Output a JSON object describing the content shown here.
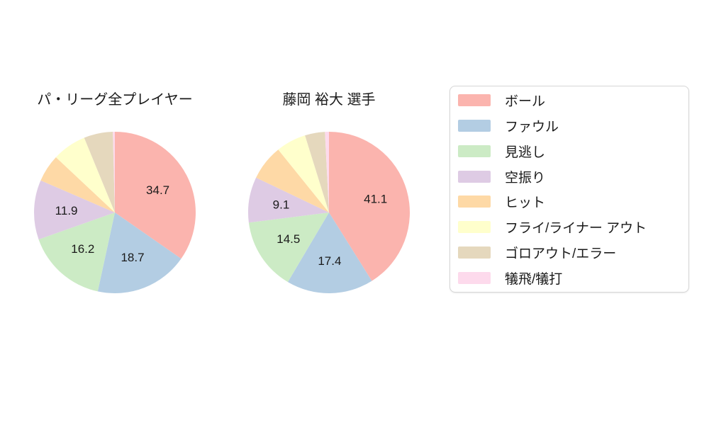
{
  "page": {
    "background_color": "#ffffff",
    "text_color": "#1a1a1a"
  },
  "chart_data": [
    {
      "type": "pie",
      "title": "パ・リーグ全プレイヤー",
      "categories": [
        "ボール",
        "ファウル",
        "見逃し",
        "空振り",
        "ヒット",
        "フライ/ライナー アウト",
        "ゴロアウト/エラー",
        "犠飛/犠打"
      ],
      "values": [
        34.7,
        18.7,
        16.2,
        11.9,
        5.5,
        6.8,
        5.8,
        0.4
      ],
      "labeled_values": [
        "34.7",
        "18.7",
        "16.2",
        "11.9"
      ],
      "colors": [
        "#fbb4ae",
        "#b3cde3",
        "#ccebc5",
        "#decbe4",
        "#fed9a6",
        "#ffffcc",
        "#e5d8bd",
        "#fddaec"
      ],
      "start_angle": "12-oclock",
      "direction": "clockwise",
      "label_threshold": 8,
      "label_distance_ratio": 0.6
    },
    {
      "type": "pie",
      "title": "藤岡 裕大  選手",
      "categories": [
        "ボール",
        "ファウル",
        "見逃し",
        "空振り",
        "ヒット",
        "フライ/ライナー アウト",
        "ゴロアウト/エラー",
        "犠飛/犠打"
      ],
      "values": [
        41.1,
        17.4,
        14.5,
        9.1,
        7.1,
        6.0,
        4.0,
        0.8
      ],
      "labeled_values": [
        "41.1",
        "17.4",
        "14.5",
        "9.1"
      ],
      "colors": [
        "#fbb4ae",
        "#b3cde3",
        "#ccebc5",
        "#decbe4",
        "#fed9a6",
        "#ffffcc",
        "#e5d8bd",
        "#fddaec"
      ],
      "start_angle": "12-oclock",
      "direction": "clockwise",
      "label_threshold": 8,
      "label_distance_ratio": 0.6
    }
  ],
  "legend": {
    "position": "right",
    "entries": [
      {
        "label": "ボール",
        "color": "#fbb4ae"
      },
      {
        "label": "ファウル",
        "color": "#b3cde3"
      },
      {
        "label": "見逃し",
        "color": "#ccebc5"
      },
      {
        "label": "空振り",
        "color": "#decbe4"
      },
      {
        "label": "ヒット",
        "color": "#fed9a6"
      },
      {
        "label": "フライ/ライナー アウト",
        "color": "#ffffcc"
      },
      {
        "label": "ゴロアウト/エラー",
        "color": "#e5d8bd"
      },
      {
        "label": "犠飛/犠打",
        "color": "#fddaec"
      }
    ]
  }
}
